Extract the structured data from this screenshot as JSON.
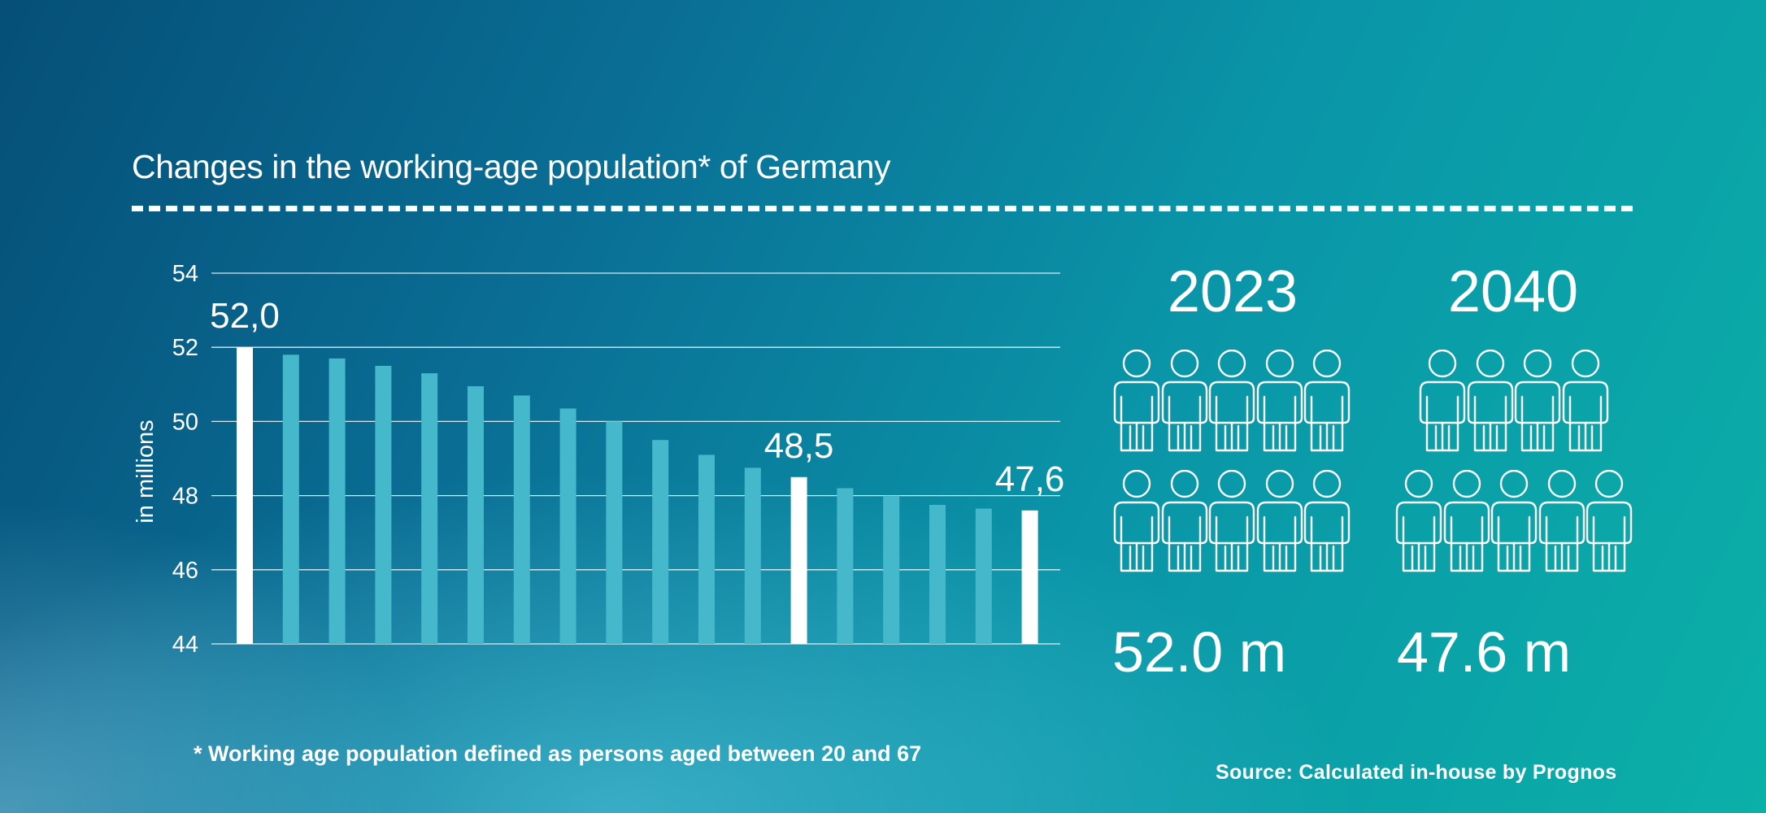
{
  "chart_data": {
    "type": "bar",
    "title": "Changes in the working-age population* of Germany",
    "ylabel": "in millions",
    "ylim": [
      44,
      54
    ],
    "yticks": [
      44,
      46,
      48,
      50,
      52,
      54
    ],
    "grid": true,
    "values": [
      52.0,
      51.8,
      51.7,
      51.5,
      51.3,
      50.95,
      50.7,
      50.35,
      50.0,
      49.5,
      49.1,
      48.75,
      48.5,
      48.2,
      48.0,
      47.75,
      47.65,
      47.6
    ],
    "highlighted_indices": [
      0,
      12,
      17
    ],
    "data_labels": [
      {
        "index": 0,
        "text": "52,0"
      },
      {
        "index": 12,
        "text": "48,5"
      },
      {
        "index": 17,
        "text": "47,6"
      }
    ]
  },
  "comparison": {
    "left": {
      "year": "2023",
      "value_label": "52.0 m",
      "people_count": 10
    },
    "right": {
      "year": "2040",
      "value_label": "47.6 m",
      "people_count": 9
    }
  },
  "footnote": "* Working age population defined as persons aged between 20 and 67",
  "source": "Source: Calculated in-house by Prognos",
  "colors": {
    "bar": "#45b9cb",
    "bar_highlight": "#ffffff",
    "text": "#ffffff"
  }
}
